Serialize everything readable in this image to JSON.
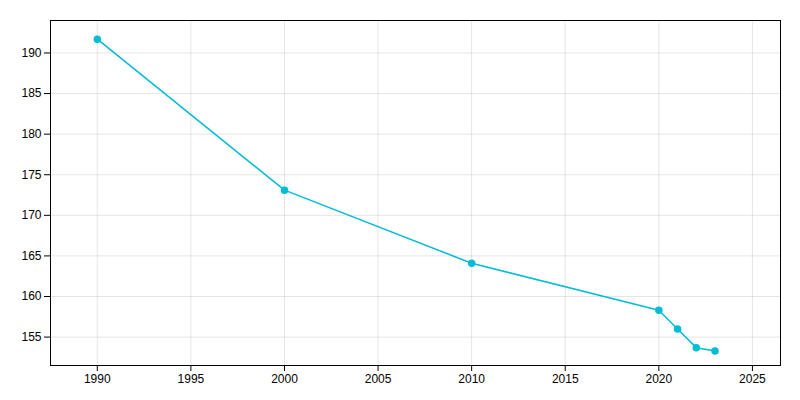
{
  "chart_data": {
    "type": "line",
    "x": [
      1990,
      2000,
      2010,
      2020,
      2021,
      2022,
      2023
    ],
    "values": [
      191.7,
      173.1,
      164.1,
      158.3,
      156.0,
      153.7,
      153.3
    ],
    "color": "#00bcd4",
    "marker": "circle",
    "xlim": [
      1987.5,
      2026.5
    ],
    "ylim": [
      151.5,
      194.0
    ],
    "xticks": [
      1990,
      1995,
      2000,
      2005,
      2010,
      2015,
      2020,
      2025
    ],
    "yticks": [
      155,
      160,
      165,
      170,
      175,
      180,
      185,
      190
    ],
    "grid": true
  }
}
